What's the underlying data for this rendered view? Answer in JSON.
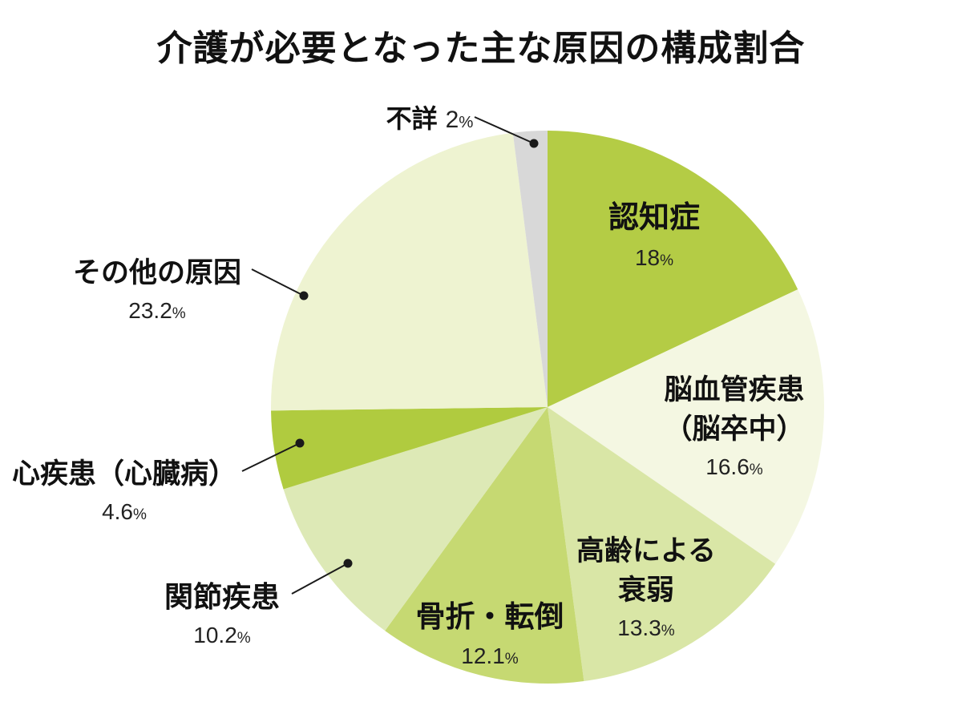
{
  "title": "介護が必要となった主な原因の構成割合",
  "chart_data": {
    "type": "pie",
    "title": "介護が必要となった主な原因の構成割合",
    "unit": "%",
    "start_angle_deg": -90,
    "direction": "clockwise",
    "legend": "none",
    "slices": [
      {
        "id": "dementia",
        "label": "認知症",
        "label_lines": [
          "認知症"
        ],
        "value": 18,
        "value_text": "18",
        "color": "#b4cc45",
        "label_placement": "inside"
      },
      {
        "id": "stroke",
        "label": "脳血管疾患（脳卒中）",
        "label_lines": [
          "脳血管疾患",
          "（脳卒中）"
        ],
        "value": 16.6,
        "value_text": "16.6",
        "color": "#f4f7e2",
        "label_placement": "inside"
      },
      {
        "id": "frailty",
        "label": "高齢による衰弱",
        "label_lines": [
          "高齢による",
          "衰弱"
        ],
        "value": 13.3,
        "value_text": "13.3",
        "color": "#d9e6a6",
        "label_placement": "inside"
      },
      {
        "id": "fracture",
        "label": "骨折・転倒",
        "label_lines": [
          "骨折・転倒"
        ],
        "value": 12.1,
        "value_text": "12.1",
        "color": "#c6d972",
        "label_placement": "inside"
      },
      {
        "id": "joint",
        "label": "関節疾患",
        "label_lines": [
          "関節疾患"
        ],
        "value": 10.2,
        "value_text": "10.2",
        "color": "#dde9b6",
        "label_placement": "outside"
      },
      {
        "id": "heart",
        "label": "心疾患（心臓病）",
        "label_lines": [
          "心疾患（心臓病）"
        ],
        "value": 4.6,
        "value_text": "4.6",
        "color": "#b0cb3f",
        "label_placement": "outside"
      },
      {
        "id": "other",
        "label": "その他の原因",
        "label_lines": [
          "その他の原因"
        ],
        "value": 23.2,
        "value_text": "23.2",
        "color": "#eef3d1",
        "label_placement": "outside"
      },
      {
        "id": "unknown",
        "label": "不詳",
        "label_lines": [
          "不詳"
        ],
        "value": 2,
        "value_text": "2",
        "color": "#d8d8d8",
        "label_placement": "outside"
      }
    ]
  }
}
